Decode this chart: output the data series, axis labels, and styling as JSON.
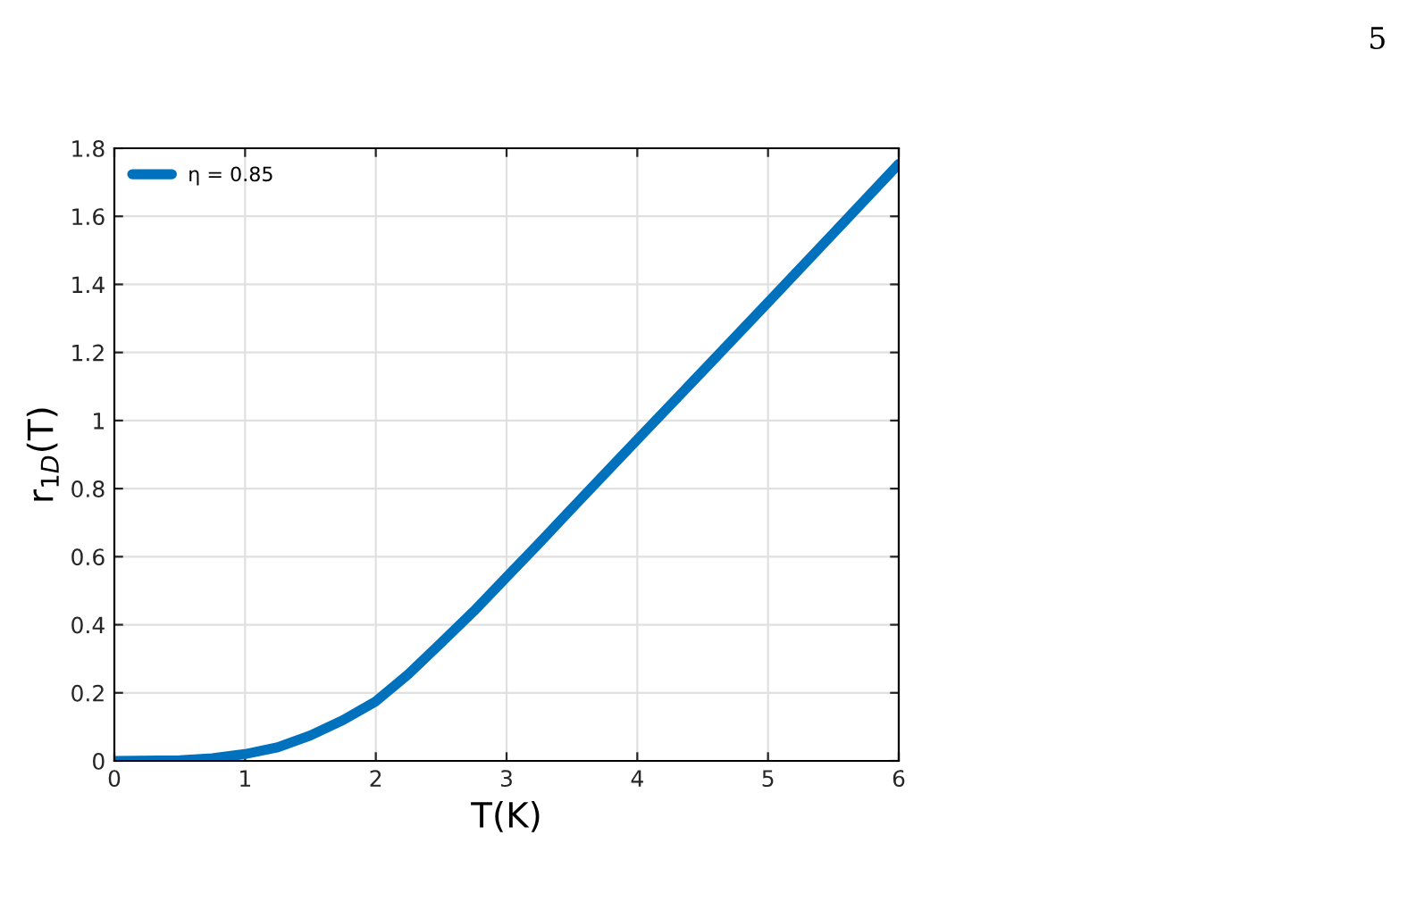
{
  "chart_data": {
    "type": "line",
    "xlabel": "T(K)",
    "ylabel": "r$_{1D}$(T)",
    "x": [
      0,
      0.5,
      0.75,
      1,
      1.25,
      1.5,
      1.75,
      2,
      2.25,
      2.5,
      2.75,
      3,
      3.25,
      3.5,
      4,
      4.5,
      5,
      5.5,
      6
    ],
    "series": [
      {
        "name": "η = 0.85",
        "color": "#0072bd",
        "values": [
          0,
          0.002,
          0.008,
          0.02,
          0.04,
          0.075,
          0.12,
          0.175,
          0.255,
          0.347,
          0.44,
          0.54,
          0.64,
          0.742,
          0.944,
          1.145,
          1.347,
          1.55,
          1.754
        ]
      }
    ],
    "xlim": [
      0,
      6
    ],
    "xticks": [
      0,
      1,
      2,
      3,
      4,
      5,
      6
    ],
    "ylim": [
      0,
      1.8
    ],
    "yticks": [
      0,
      0.2,
      0.4,
      0.6,
      0.8,
      1,
      1.2,
      1.4,
      1.6,
      1.8
    ],
    "grid": true,
    "legend": "top left",
    "line_style": "solid",
    "marker": "none",
    "annotations": [
      "5"
    ]
  }
}
